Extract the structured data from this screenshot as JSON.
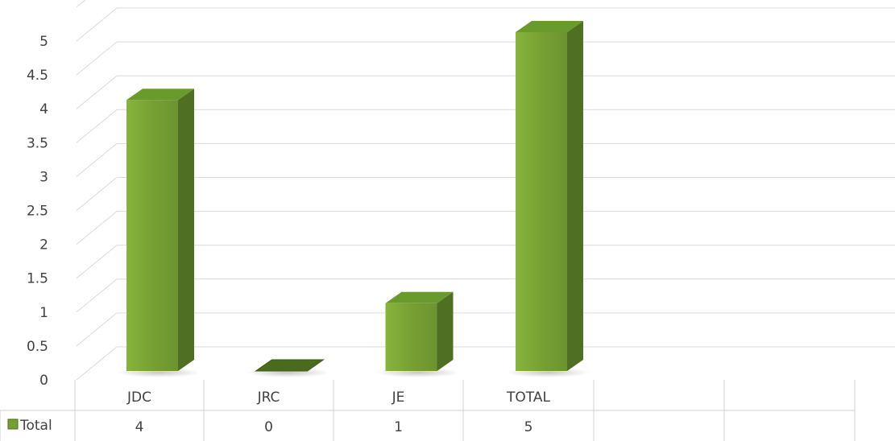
{
  "chart_data": {
    "type": "bar",
    "categories": [
      "JDC",
      "JRC",
      "JE",
      "TOTAL",
      "",
      ""
    ],
    "series": [
      {
        "name": "Total",
        "values": [
          4,
          0,
          1,
          5,
          null,
          null
        ],
        "color": "#77a033"
      }
    ],
    "value_labels": [
      "4",
      "0",
      "1",
      "5",
      "",
      ""
    ],
    "yticks": [
      "0",
      "0.5",
      "1",
      "1.5",
      "2",
      "2.5",
      "3",
      "3.5",
      "4",
      "4.5",
      "5"
    ],
    "ylim": [
      0,
      5.5
    ],
    "grid": true,
    "style": "3d-column-with-data-table",
    "legend": "data-table-left"
  }
}
